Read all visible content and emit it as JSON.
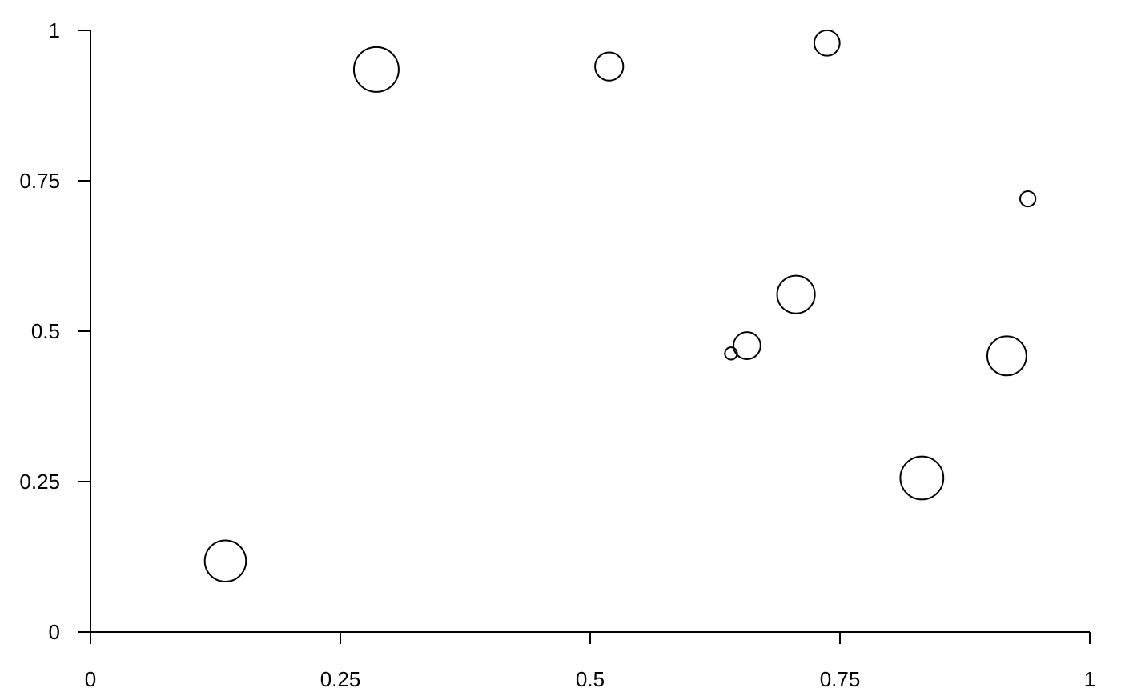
{
  "chart_data": {
    "type": "scatter",
    "title": "",
    "xlabel": "",
    "ylabel": "",
    "xlim": [
      0,
      1
    ],
    "ylim": [
      0,
      1
    ],
    "grid": false,
    "x_ticks": [
      0,
      0.25,
      0.5,
      0.75,
      1
    ],
    "y_ticks": [
      0,
      0.25,
      0.5,
      0.75,
      1
    ],
    "x_tick_labels": [
      "0",
      "0.25",
      "0.5",
      "0.75",
      "1"
    ],
    "y_tick_labels": [
      "0",
      "0.25",
      "0.5",
      "0.75",
      "1"
    ],
    "marker": "open-circle",
    "marker_color": "#000000",
    "points": [
      {
        "x": 0.135,
        "y": 0.118,
        "size": 0.79
      },
      {
        "x": 0.286,
        "y": 0.935,
        "size": 0.93
      },
      {
        "x": 0.519,
        "y": 0.94,
        "size": 0.37
      },
      {
        "x": 0.737,
        "y": 0.979,
        "size": 0.3
      },
      {
        "x": 0.938,
        "y": 0.72,
        "size": 0.11
      },
      {
        "x": 0.706,
        "y": 0.561,
        "size": 0.66
      },
      {
        "x": 0.641,
        "y": 0.463,
        "size": 0.07
      },
      {
        "x": 0.657,
        "y": 0.476,
        "size": 0.34
      },
      {
        "x": 0.917,
        "y": 0.459,
        "size": 0.71
      },
      {
        "x": 0.832,
        "y": 0.256,
        "size": 0.86
      }
    ]
  }
}
